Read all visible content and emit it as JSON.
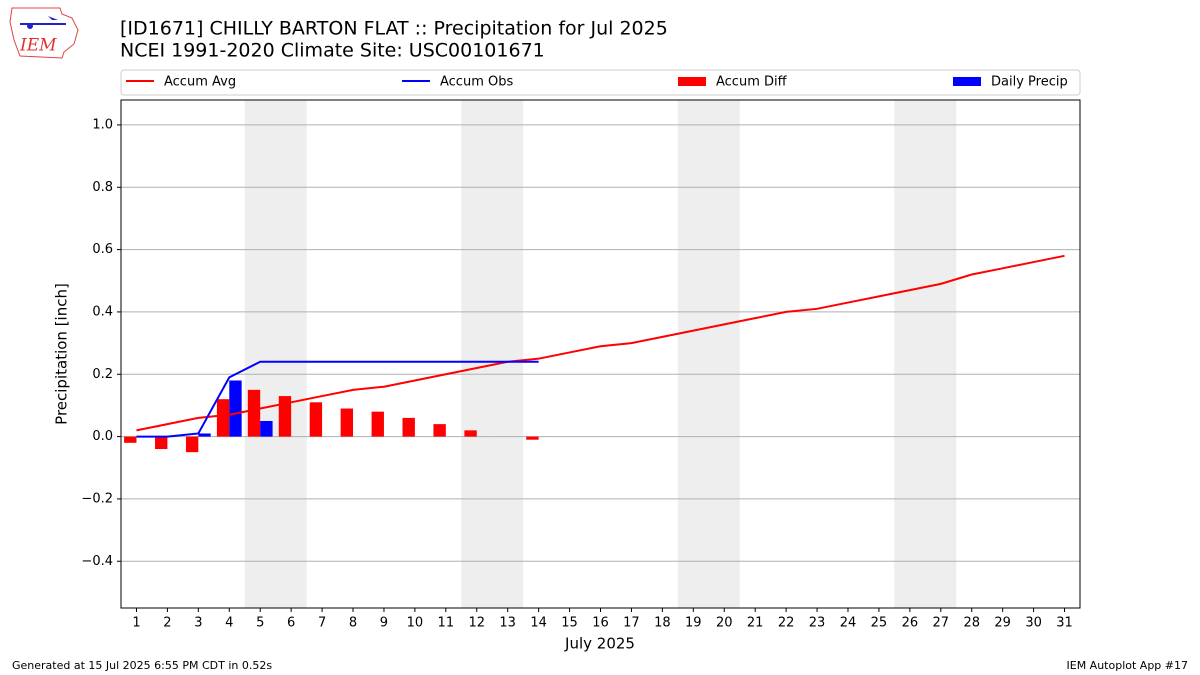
{
  "chart_data": {
    "type": "combo",
    "title": "[ID1671] CHILLY BARTON FLAT :: Precipitation for Jul 2025",
    "subtitle": "NCEI 1991-2020 Climate Site: USC00101671",
    "logo_text": "IEM",
    "x_label": "July 2025",
    "y_label": "Precipitation [inch]",
    "footer_left": "Generated at 15 Jul 2025 6:55 PM CDT in 0.52s",
    "footer_right": "IEM Autoplot App #17",
    "x": [
      1,
      2,
      3,
      4,
      5,
      6,
      7,
      8,
      9,
      10,
      11,
      12,
      13,
      14,
      15,
      16,
      17,
      18,
      19,
      20,
      21,
      22,
      23,
      24,
      25,
      26,
      27,
      28,
      29,
      30,
      31
    ],
    "xlim": [
      0.5,
      31.5
    ],
    "xticks": [
      1,
      2,
      3,
      4,
      5,
      6,
      7,
      8,
      9,
      10,
      11,
      12,
      13,
      14,
      15,
      16,
      17,
      18,
      19,
      20,
      21,
      22,
      23,
      24,
      25,
      26,
      27,
      28,
      29,
      30,
      31
    ],
    "ylim": [
      -0.55,
      1.08
    ],
    "yticks": [
      {
        "value": -0.4,
        "label": "−0.4"
      },
      {
        "value": -0.2,
        "label": "−0.2"
      },
      {
        "value": 0,
        "label": "0.0"
      },
      0.2,
      0.4,
      0.6,
      0.8,
      {
        "value": 1,
        "label": "1.0"
      }
    ],
    "grid": true,
    "weekend_spans": [
      [
        4.5,
        6.5
      ],
      [
        11.5,
        13.5
      ],
      [
        18.5,
        20.5
      ],
      [
        25.5,
        27.5
      ]
    ],
    "series": [
      {
        "name": "Accum Avg",
        "type": "line",
        "color": "#ff0000",
        "values": [
          0.02,
          0.04,
          0.06,
          0.07,
          0.09,
          0.11,
          0.13,
          0.15,
          0.16,
          0.18,
          0.2,
          0.22,
          0.24,
          0.25,
          0.27,
          0.29,
          0.3,
          0.32,
          0.34,
          0.36,
          0.38,
          0.4,
          0.41,
          0.43,
          0.45,
          0.47,
          0.49,
          0.52,
          0.54,
          0.56,
          0.58
        ]
      },
      {
        "name": "Accum Obs",
        "type": "line",
        "color": "#0000ff",
        "values": [
          0,
          0,
          0.01,
          0.19,
          0.24,
          0.24,
          0.24,
          0.24,
          0.24,
          0.24,
          0.24,
          0.24,
          0.24,
          0.24,
          null,
          null,
          null,
          null,
          null,
          null,
          null,
          null,
          null,
          null,
          null,
          null,
          null,
          null,
          null,
          null,
          null
        ]
      },
      {
        "name": "Accum Diff",
        "type": "bar",
        "color": "#ff0000",
        "values": [
          -0.02,
          -0.04,
          -0.05,
          0.12,
          0.15,
          0.13,
          0.11,
          0.09,
          0.08,
          0.06,
          0.04,
          0.02,
          0,
          -0.01,
          null,
          null,
          null,
          null,
          null,
          null,
          null,
          null,
          null,
          null,
          null,
          null,
          null,
          null,
          null,
          null,
          null
        ]
      },
      {
        "name": "Daily Precip",
        "type": "bar",
        "color": "#0000ff",
        "values": [
          0,
          0,
          0.01,
          0.18,
          0.05,
          0,
          0,
          0,
          0,
          0,
          0,
          0,
          0,
          0,
          null,
          null,
          null,
          null,
          null,
          null,
          null,
          null,
          null,
          null,
          null,
          null,
          null,
          null,
          null,
          null,
          null
        ]
      }
    ]
  }
}
